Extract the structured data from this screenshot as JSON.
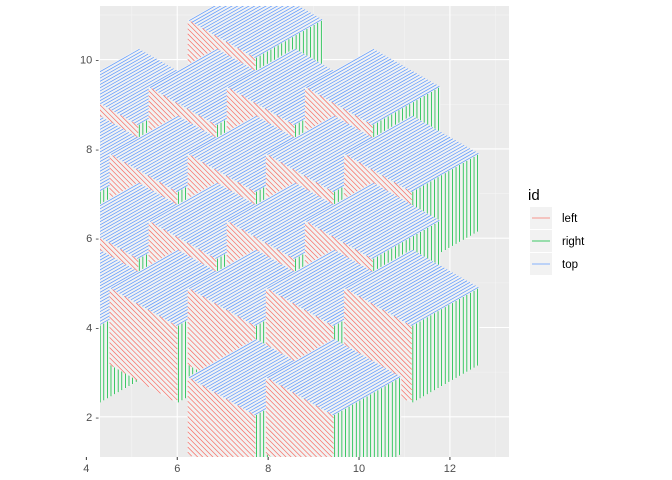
{
  "chart_data": {
    "type": "polygon-pattern",
    "title": "",
    "xlabel": "",
    "ylabel": "",
    "xlim": [
      4.3,
      13.3
    ],
    "ylim": [
      1.1,
      11.2
    ],
    "x_ticks": [
      4,
      6,
      8,
      10,
      12
    ],
    "y_ticks": [
      2,
      4,
      6,
      8,
      10
    ],
    "x_tick_labels": [
      "4",
      "6",
      "8",
      "10",
      "12"
    ],
    "y_tick_labels": [
      "2 -",
      "4 -",
      "6 -",
      "8 -",
      "10 -"
    ],
    "grid": true,
    "cube_size": 1.72,
    "cube_centers": [
      [
        7.72,
        2.03
      ],
      [
        9.44,
        2.03
      ],
      [
        4.28,
        4.03
      ],
      [
        6.0,
        4.03
      ],
      [
        7.72,
        4.03
      ],
      [
        9.44,
        4.03
      ],
      [
        11.16,
        4.03
      ],
      [
        5.14,
        5.53
      ],
      [
        6.86,
        5.53
      ],
      [
        8.58,
        5.53
      ],
      [
        10.3,
        5.53
      ],
      [
        4.28,
        7.03
      ],
      [
        6.0,
        7.03
      ],
      [
        7.72,
        7.03
      ],
      [
        9.44,
        7.03
      ],
      [
        11.16,
        7.03
      ],
      [
        5.14,
        8.53
      ],
      [
        6.86,
        8.53
      ],
      [
        8.58,
        8.53
      ],
      [
        10.3,
        8.53
      ],
      [
        7.72,
        10.03
      ]
    ],
    "series": [
      {
        "name": "left",
        "color": "#F8766D",
        "pattern": "diagonal"
      },
      {
        "name": "right",
        "color": "#00BA38",
        "pattern": "vertical"
      },
      {
        "name": "top",
        "color": "#619CFF",
        "pattern": "diagonal"
      }
    ],
    "legend": {
      "title": "id",
      "position": "right",
      "entries": [
        "left",
        "right",
        "top"
      ]
    }
  }
}
